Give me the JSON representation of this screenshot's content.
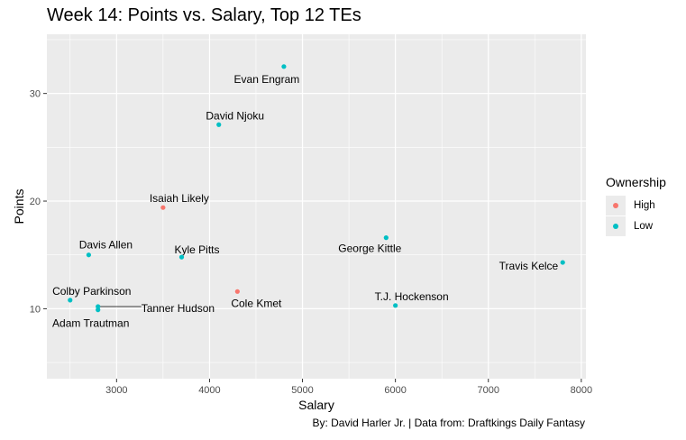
{
  "chart_data": {
    "type": "scatter",
    "title": "Week 14: Points vs. Salary, Top 12 TEs",
    "caption": "By: David Harler Jr. | Data from: Draftkings Daily Fantasy",
    "xlabel": "Salary",
    "ylabel": "Points",
    "xlim": [
      2250,
      8050
    ],
    "ylim": [
      3.5,
      35.5
    ],
    "xticks": [
      3000,
      4000,
      5000,
      6000,
      7000,
      8000
    ],
    "yticks": [
      10,
      20,
      30
    ],
    "grid": true,
    "legend": {
      "title": "Ownership",
      "position": "right",
      "entries": [
        {
          "label": "High",
          "color": "#F8766D"
        },
        {
          "label": "Low",
          "color": "#00BFC4"
        }
      ]
    },
    "points": [
      {
        "label": "Evan Engram",
        "x": 4800,
        "y": 32.5,
        "ownership": "Low"
      },
      {
        "label": "David Njoku",
        "x": 4100,
        "y": 27.1,
        "ownership": "Low"
      },
      {
        "label": "Isaiah Likely",
        "x": 3500,
        "y": 19.4,
        "ownership": "High"
      },
      {
        "label": "Davis Allen",
        "x": 2700,
        "y": 15.0,
        "ownership": "Low"
      },
      {
        "label": "Kyle Pitts",
        "x": 3700,
        "y": 14.8,
        "ownership": "Low"
      },
      {
        "label": "George Kittle",
        "x": 5900,
        "y": 16.6,
        "ownership": "Low"
      },
      {
        "label": "Travis Kelce",
        "x": 7800,
        "y": 14.3,
        "ownership": "Low"
      },
      {
        "label": "Cole Kmet",
        "x": 4300,
        "y": 11.6,
        "ownership": "High"
      },
      {
        "label": "T.J. Hockenson",
        "x": 6000,
        "y": 10.3,
        "ownership": "Low"
      },
      {
        "label": "Colby Parkinson",
        "x": 2500,
        "y": 10.8,
        "ownership": "Low"
      },
      {
        "label": "Adam Trautman",
        "x": 2800,
        "y": 9.9,
        "ownership": "Low"
      },
      {
        "label": "Tanner Hudson",
        "x": 2800,
        "y": 10.2,
        "ownership": "Low"
      }
    ]
  }
}
